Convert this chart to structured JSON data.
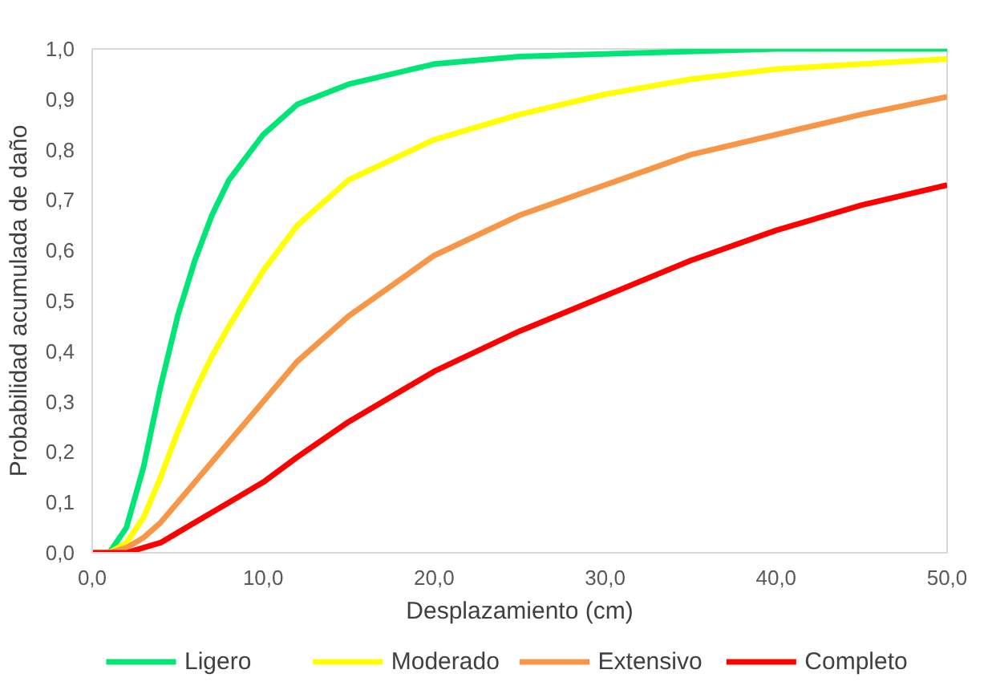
{
  "chart_data": {
    "type": "line",
    "xlabel": "Desplazamiento (cm)",
    "ylabel": "Probabilidad acumulada de daño",
    "xlim": [
      0,
      50
    ],
    "ylim": [
      0,
      1
    ],
    "xticks": [
      {
        "value": 0,
        "label": "0,0"
      },
      {
        "value": 10,
        "label": "10,0"
      },
      {
        "value": 20,
        "label": "20,0"
      },
      {
        "value": 30,
        "label": "30,0"
      },
      {
        "value": 40,
        "label": "40,0"
      },
      {
        "value": 50,
        "label": "50,0"
      }
    ],
    "yticks": [
      {
        "value": 0,
        "label": "0,0"
      },
      {
        "value": 0.1,
        "label": "0,1"
      },
      {
        "value": 0.2,
        "label": "0,2"
      },
      {
        "value": 0.3,
        "label": "0,3"
      },
      {
        "value": 0.4,
        "label": "0,4"
      },
      {
        "value": 0.5,
        "label": "0,5"
      },
      {
        "value": 0.6,
        "label": "0,6"
      },
      {
        "value": 0.7,
        "label": "0,7"
      },
      {
        "value": 0.8,
        "label": "0,8"
      },
      {
        "value": 0.9,
        "label": "0,9"
      },
      {
        "value": 1.0,
        "label": "1,0"
      }
    ],
    "grid": false,
    "legend": "bottom",
    "marker": "none",
    "line_style": "solid",
    "series": [
      {
        "name": "Ligero",
        "color": "#00e676",
        "x": [
          0,
          1,
          2,
          3,
          4,
          5,
          6,
          7,
          8,
          10,
          12,
          15,
          20,
          25,
          30,
          40,
          50
        ],
        "values": [
          0,
          0.0,
          0.05,
          0.17,
          0.33,
          0.47,
          0.58,
          0.67,
          0.74,
          0.83,
          0.89,
          0.93,
          0.97,
          0.985,
          0.99,
          1.0,
          1.0
        ]
      },
      {
        "name": "Moderado",
        "color": "#ffff00",
        "x": [
          0,
          1,
          2,
          3,
          4,
          5,
          6,
          7,
          8,
          10,
          12,
          15,
          20,
          25,
          30,
          35,
          40,
          45,
          50
        ],
        "values": [
          0,
          0.0,
          0.02,
          0.07,
          0.15,
          0.24,
          0.32,
          0.39,
          0.45,
          0.56,
          0.65,
          0.74,
          0.82,
          0.87,
          0.91,
          0.94,
          0.96,
          0.97,
          0.98
        ]
      },
      {
        "name": "Extensivo",
        "color": "#f79646",
        "x": [
          0,
          1,
          2,
          3,
          4,
          5,
          6,
          8,
          10,
          12,
          15,
          20,
          25,
          30,
          35,
          40,
          45,
          50
        ],
        "values": [
          0,
          0,
          0.01,
          0.03,
          0.06,
          0.1,
          0.14,
          0.22,
          0.3,
          0.38,
          0.47,
          0.59,
          0.67,
          0.73,
          0.79,
          0.83,
          0.87,
          0.905
        ]
      },
      {
        "name": "Completo",
        "color": "#ff0000",
        "x": [
          0,
          1,
          2,
          3,
          4,
          5,
          6,
          8,
          10,
          12,
          15,
          20,
          25,
          30,
          35,
          40,
          45,
          50
        ],
        "values": [
          0,
          0,
          0.0,
          0.01,
          0.02,
          0.04,
          0.06,
          0.1,
          0.14,
          0.19,
          0.26,
          0.36,
          0.44,
          0.51,
          0.58,
          0.64,
          0.69,
          0.73
        ]
      }
    ]
  }
}
